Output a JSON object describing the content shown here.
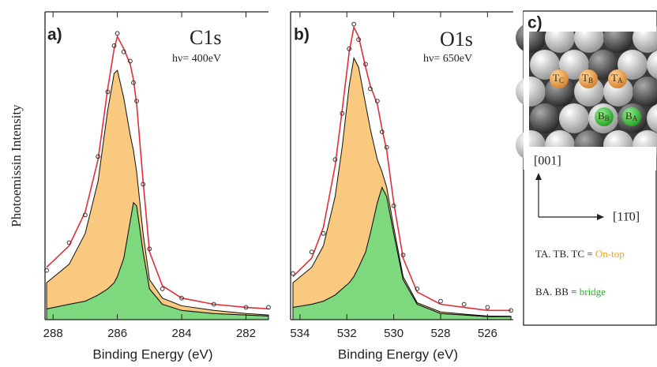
{
  "chart_data": [
    {
      "type": "area",
      "panel": "a)",
      "title": "C1s",
      "subtitle": "hν= 400eV",
      "xlabel": "Binding Energy (eV)",
      "ylabel": "Photoemissin Intensity",
      "xlim": [
        288.25,
        281.3
      ],
      "ylim": [
        0,
        1
      ],
      "xticks": [
        288,
        286,
        284,
        282
      ],
      "x": [
        288.2,
        287.5,
        287,
        286.6,
        286.3,
        286.1,
        286.0,
        285.8,
        285.6,
        285.5,
        285.4,
        285.2,
        285.0,
        284.6,
        284,
        283,
        282,
        281.3
      ],
      "series": [
        {
          "color": "#7ed87e",
          "style": "area",
          "values": [
            0.035,
            0.05,
            0.06,
            0.08,
            0.1,
            0.12,
            0.14,
            0.2,
            0.32,
            0.38,
            0.37,
            0.22,
            0.1,
            0.05,
            0.03,
            0.02,
            0.015,
            0.012
          ]
        },
        {
          "color": "#f8c97e",
          "style": "area",
          "values": [
            0.085,
            0.13,
            0.22,
            0.37,
            0.58,
            0.68,
            0.67,
            0.52,
            0.28,
            0.17,
            0.11,
            0.06,
            0.03,
            0.02,
            0.015,
            0.01,
            0.005,
            0.003
          ]
        },
        {
          "color": "#e0303a",
          "style": "line",
          "values": [
            0.17,
            0.24,
            0.35,
            0.52,
            0.75,
            0.88,
            0.92,
            0.88,
            0.83,
            0.78,
            0.7,
            0.45,
            0.22,
            0.11,
            0.07,
            0.05,
            0.04,
            0.035
          ]
        },
        {
          "color": "#333333",
          "style": "points",
          "values": [
            0.16,
            0.25,
            0.34,
            0.53,
            0.74,
            0.89,
            0.93,
            0.87,
            0.84,
            0.77,
            0.71,
            0.44,
            0.23,
            0.1,
            0.07,
            0.05,
            0.04,
            0.04
          ]
        }
      ]
    },
    {
      "type": "area",
      "panel": "b)",
      "title": "O1s",
      "subtitle": "hν= 650eV",
      "xlabel": "Binding Energy (eV)",
      "xlim": [
        534.4,
        524.9
      ],
      "ylim": [
        0,
        1
      ],
      "xticks": [
        534,
        532,
        530,
        528,
        526
      ],
      "x": [
        534.3,
        533.5,
        533,
        532.5,
        532.2,
        531.9,
        531.7,
        531.5,
        531.2,
        531.0,
        530.7,
        530.5,
        530.3,
        530.0,
        529.6,
        529,
        528,
        527,
        526,
        525
      ],
      "series": [
        {
          "color": "#7ed87e",
          "style": "area",
          "values": [
            0.04,
            0.05,
            0.06,
            0.08,
            0.1,
            0.12,
            0.14,
            0.17,
            0.22,
            0.28,
            0.38,
            0.43,
            0.4,
            0.28,
            0.13,
            0.05,
            0.02,
            0.015,
            0.01,
            0.01
          ]
        },
        {
          "color": "#f8c97e",
          "style": "area",
          "values": [
            0.08,
            0.12,
            0.18,
            0.32,
            0.46,
            0.64,
            0.71,
            0.65,
            0.48,
            0.34,
            0.14,
            0.05,
            0.03,
            0.02,
            0.01,
            0.005,
            0.005,
            0.003,
            0.002,
            0.001
          ]
        },
        {
          "color": "#e0303a",
          "style": "line",
          "values": [
            0.14,
            0.2,
            0.3,
            0.5,
            0.68,
            0.87,
            0.95,
            0.92,
            0.82,
            0.76,
            0.7,
            0.62,
            0.55,
            0.38,
            0.2,
            0.09,
            0.05,
            0.04,
            0.03,
            0.03
          ]
        },
        {
          "color": "#333333",
          "style": "points",
          "values": [
            0.15,
            0.22,
            0.28,
            0.52,
            0.67,
            0.88,
            0.96,
            0.91,
            0.83,
            0.75,
            0.71,
            0.61,
            0.56,
            0.37,
            0.21,
            0.1,
            0.06,
            0.05,
            0.04,
            0.03
          ]
        }
      ]
    }
  ],
  "diagram": {
    "panel": "c)",
    "ontop": [
      [
        "T",
        "C"
      ],
      [
        "T",
        "B"
      ],
      [
        "T",
        "A"
      ]
    ],
    "bridge": [
      [
        "B",
        "B"
      ],
      [
        "B",
        "A"
      ]
    ],
    "dir_vertical": "[001]",
    "dir_horizontal": "[11̄0]",
    "legend_ontop": "TA. TB. TC =",
    "legend_ontop_word": "On-top",
    "legend_bridge": "BA. BB =",
    "legend_bridge_word": "bridge"
  }
}
